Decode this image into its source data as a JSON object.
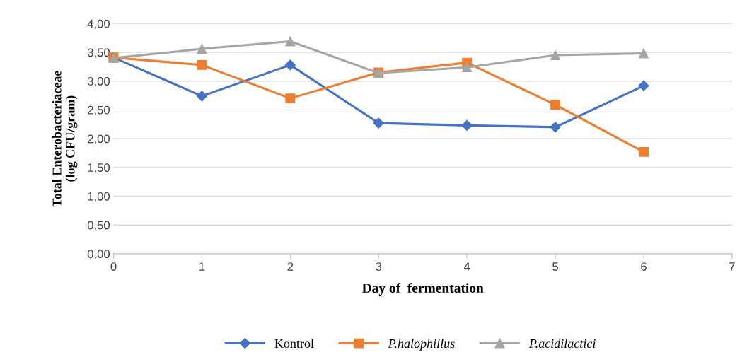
{
  "chart_data": {
    "type": "line",
    "xlabel": "Day of  fermentation",
    "ylabel": "Total Enterobacteriaceae\n(log CFU/gram)",
    "x": [
      0,
      1,
      2,
      3,
      4,
      5,
      6
    ],
    "series": [
      {
        "name": "Kontrol",
        "color": "#4472c4",
        "marker": "diamond",
        "values": [
          3.41,
          2.74,
          3.28,
          2.27,
          2.23,
          2.2,
          2.92
        ]
      },
      {
        "name": "P.halophillus",
        "color": "#ed7d31",
        "marker": "square",
        "values": [
          3.41,
          3.28,
          2.7,
          3.15,
          3.32,
          2.59,
          1.77
        ]
      },
      {
        "name": "P.acidilactici",
        "color": "#a5a5a5",
        "marker": "triangle",
        "values": [
          3.4,
          3.56,
          3.69,
          3.14,
          3.24,
          3.45,
          3.48
        ]
      }
    ],
    "xlim": [
      0,
      7
    ],
    "xticks": [
      0,
      1,
      2,
      3,
      4,
      5,
      6,
      7
    ],
    "ylim": [
      0,
      4
    ],
    "yticks": [
      {
        "value": 0,
        "label": "0,00"
      },
      {
        "value": 0.5,
        "label": "0,50"
      },
      {
        "value": 1,
        "label": "1,00"
      },
      {
        "value": 1.5,
        "label": "1,50"
      },
      {
        "value": 2,
        "label": "2,00"
      },
      {
        "value": 2.5,
        "label": "2,50"
      },
      {
        "value": 3,
        "label": "3,00"
      },
      {
        "value": 3.5,
        "label": "3,50"
      },
      {
        "value": 4,
        "label": "4,00"
      }
    ],
    "grid": "y",
    "legend": "bottom"
  }
}
